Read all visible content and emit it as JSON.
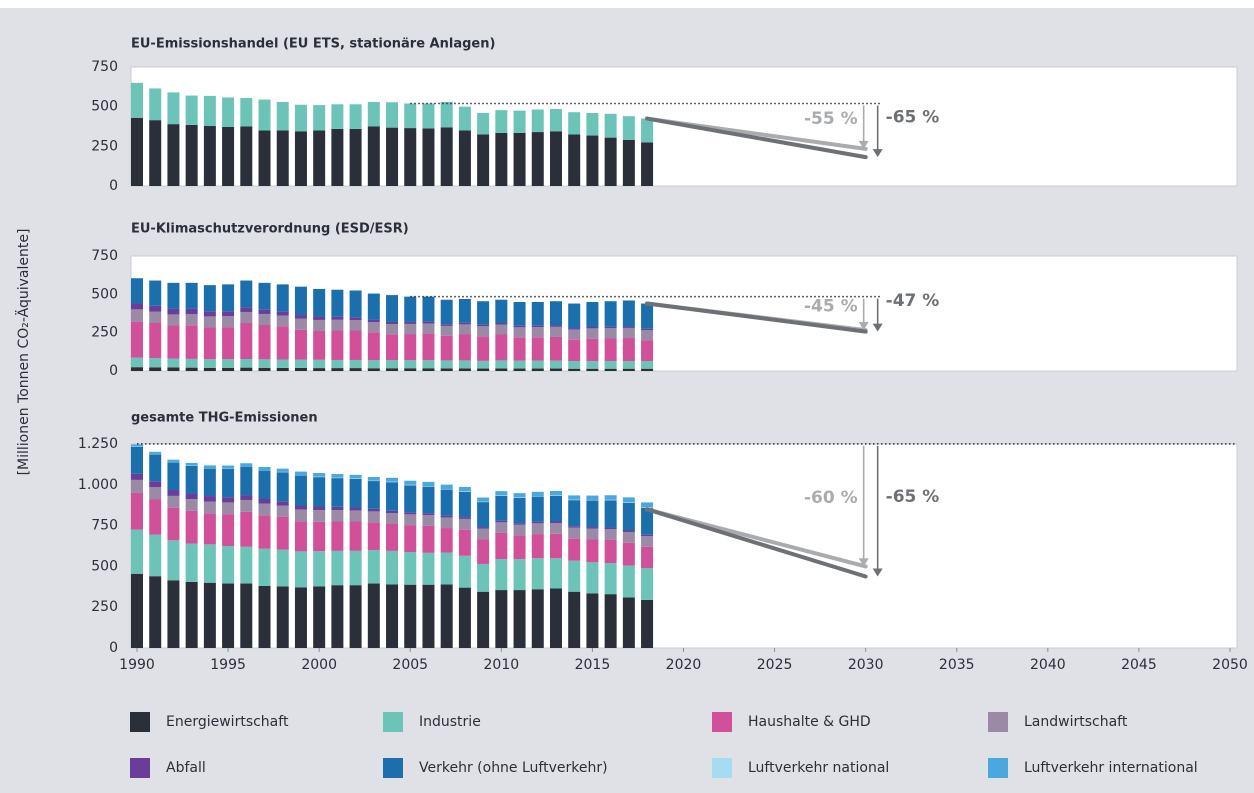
{
  "chart_data": [
    {
      "type": "bar",
      "title": "EU-Emissionshandel (EU ETS, stationäre Anlagen)",
      "x": [
        1990,
        1991,
        1992,
        1993,
        1994,
        1995,
        1996,
        1997,
        1998,
        1999,
        2000,
        2001,
        2002,
        2003,
        2004,
        2005,
        2006,
        2007,
        2008,
        2009,
        2010,
        2011,
        2012,
        2013,
        2014,
        2015,
        2016,
        2017,
        2018
      ],
      "series": [
        {
          "name": "Energiewirtschaft",
          "color": "#2b2f3a",
          "values": [
            430,
            415,
            390,
            385,
            378,
            372,
            375,
            350,
            350,
            345,
            350,
            360,
            360,
            375,
            368,
            365,
            363,
            370,
            350,
            325,
            335,
            335,
            340,
            345,
            325,
            318,
            305,
            290,
            275
          ]
        },
        {
          "name": "Industrie",
          "color": "#6cc4b8",
          "values": [
            220,
            200,
            200,
            185,
            190,
            186,
            180,
            195,
            180,
            167,
            160,
            155,
            155,
            155,
            160,
            155,
            157,
            160,
            150,
            135,
            143,
            140,
            142,
            140,
            140,
            142,
            150,
            150,
            150
          ]
        }
      ],
      "ylim": [
        0,
        750
      ],
      "yticks": [
        0,
        250,
        500,
        750
      ],
      "grid": false,
      "reference": {
        "value": 520,
        "x": [
          2005,
          2030
        ]
      },
      "targets": [
        {
          "label": "-55 %",
          "color": "#a9abae",
          "x": [
            2018,
            2030
          ],
          "values": [
            425,
            234
          ]
        },
        {
          "label": "-65 %",
          "color": "#6d7075",
          "x": [
            2018,
            2030
          ],
          "values": [
            425,
            182
          ]
        }
      ]
    },
    {
      "type": "bar",
      "title": "EU-Klimaschutzverordnung (ESD/ESR)",
      "x": [
        1990,
        1991,
        1992,
        1993,
        1994,
        1995,
        1996,
        1997,
        1998,
        1999,
        2000,
        2001,
        2002,
        2003,
        2004,
        2005,
        2006,
        2007,
        2008,
        2009,
        2010,
        2011,
        2012,
        2013,
        2014,
        2015,
        2016,
        2017,
        2018
      ],
      "series": [
        {
          "name": "Energiewirtschaft",
          "color": "#2b2f3a",
          "values": [
            25,
            24,
            23,
            22,
            21,
            21,
            22,
            21,
            20,
            20,
            19,
            19,
            19,
            18,
            18,
            18,
            18,
            17,
            17,
            16,
            17,
            16,
            16,
            16,
            15,
            15,
            15,
            15,
            15
          ]
        },
        {
          "name": "Industrie",
          "color": "#6cc4b8",
          "values": [
            62,
            60,
            58,
            57,
            56,
            56,
            56,
            55,
            55,
            54,
            54,
            53,
            53,
            52,
            52,
            52,
            52,
            52,
            52,
            50,
            52,
            51,
            51,
            51,
            50,
            50,
            50,
            50,
            50
          ]
        },
        {
          "name": "Haushalte & GHD",
          "color": "#d1509a",
          "values": [
            235,
            229,
            216,
            219,
            207,
            209,
            235,
            224,
            216,
            195,
            188,
            192,
            192,
            182,
            169,
            171,
            174,
            160,
            169,
            160,
            169,
            153,
            153,
            155,
            139,
            146,
            147,
            150,
            136
          ]
        },
        {
          "name": "Landwirtschaft",
          "color": "#9b8aa6",
          "values": [
            80,
            75,
            72,
            72,
            72,
            72,
            72,
            72,
            70,
            72,
            72,
            70,
            68,
            67,
            67,
            66,
            66,
            65,
            66,
            66,
            65,
            65,
            66,
            66,
            67,
            67,
            67,
            66,
            65
          ]
        },
        {
          "name": "Abfall",
          "color": "#6a3d9a",
          "values": [
            38,
            37,
            36,
            35,
            34,
            32,
            30,
            28,
            26,
            24,
            22,
            20,
            18,
            16,
            14,
            13,
            12,
            11,
            11,
            10,
            10,
            10,
            9,
            9,
            9,
            9,
            9,
            9,
            9
          ]
        },
        {
          "name": "Verkehr (ohne Luftverkehr)",
          "color": "#1a6fac",
          "values": [
            165,
            165,
            170,
            170,
            170,
            175,
            175,
            175,
            178,
            185,
            180,
            176,
            175,
            170,
            175,
            165,
            163,
            160,
            155,
            153,
            152,
            155,
            155,
            158,
            160,
            163,
            167,
            170,
            165
          ]
        }
      ],
      "ylim": [
        0,
        750
      ],
      "yticks": [
        0,
        250,
        500,
        750
      ],
      "grid": false,
      "reference": {
        "value": 485,
        "x": [
          2005,
          2030
        ]
      },
      "targets": [
        {
          "label": "-45 %",
          "color": "#a9abae",
          "x": [
            2018,
            2030
          ],
          "values": [
            440,
            267
          ]
        },
        {
          "label": "-47 %",
          "color": "#6d7075",
          "x": [
            2018,
            2030
          ],
          "values": [
            440,
            257
          ]
        }
      ]
    },
    {
      "type": "bar",
      "title": "gesamte THG-Emissionen",
      "x": [
        1990,
        1991,
        1992,
        1993,
        1994,
        1995,
        1996,
        1997,
        1998,
        1999,
        2000,
        2001,
        2002,
        2003,
        2004,
        2005,
        2006,
        2007,
        2008,
        2009,
        2010,
        2011,
        2012,
        2013,
        2014,
        2015,
        2016,
        2017,
        2018
      ],
      "series": [
        {
          "name": "Energiewirtschaft",
          "color": "#2b2f3a",
          "values": [
            455,
            440,
            415,
            405,
            400,
            395,
            395,
            380,
            378,
            372,
            378,
            385,
            385,
            395,
            390,
            388,
            388,
            390,
            370,
            345,
            355,
            355,
            360,
            365,
            345,
            335,
            330,
            310,
            295
          ]
        },
        {
          "name": "Industrie",
          "color": "#6cc4b8",
          "values": [
            270,
            255,
            245,
            235,
            235,
            230,
            225,
            228,
            225,
            220,
            215,
            210,
            210,
            205,
            205,
            200,
            195,
            195,
            195,
            170,
            190,
            190,
            190,
            185,
            190,
            190,
            190,
            195,
            195
          ]
        },
        {
          "name": "Haushalte & GHD",
          "color": "#d1509a",
          "values": [
            225,
            215,
            200,
            200,
            190,
            195,
            215,
            205,
            200,
            185,
            180,
            180,
            180,
            170,
            165,
            165,
            165,
            150,
            160,
            150,
            160,
            145,
            148,
            150,
            135,
            140,
            142,
            140,
            130
          ]
        },
        {
          "name": "Landwirtschaft",
          "color": "#9b8aa6",
          "values": [
            80,
            75,
            72,
            72,
            72,
            72,
            72,
            72,
            70,
            72,
            72,
            70,
            68,
            67,
            67,
            66,
            66,
            65,
            66,
            66,
            65,
            65,
            66,
            66,
            67,
            67,
            67,
            66,
            65
          ]
        },
        {
          "name": "Abfall",
          "color": "#6a3d9a",
          "values": [
            38,
            37,
            36,
            35,
            34,
            32,
            30,
            28,
            26,
            24,
            22,
            20,
            18,
            16,
            14,
            13,
            12,
            11,
            11,
            10,
            10,
            10,
            9,
            9,
            9,
            9,
            9,
            9,
            9
          ]
        },
        {
          "name": "Verkehr (ohne Luftverkehr)",
          "color": "#1a6fac",
          "values": [
            165,
            165,
            170,
            170,
            170,
            175,
            175,
            175,
            178,
            185,
            180,
            176,
            175,
            170,
            175,
            165,
            163,
            160,
            155,
            153,
            152,
            155,
            155,
            158,
            160,
            163,
            167,
            170,
            165
          ]
        },
        {
          "name": "Luftverkehr national",
          "color": "#a6dcf2",
          "values": [
            2,
            2,
            2,
            2,
            2,
            2,
            2,
            2,
            2,
            2,
            3,
            3,
            3,
            3,
            3,
            3,
            3,
            3,
            3,
            3,
            3,
            3,
            3,
            3,
            3,
            3,
            3,
            3,
            3
          ]
        },
        {
          "name": "Luftverkehr international",
          "color": "#4aa8dc",
          "values": [
            12,
            13,
            14,
            15,
            16,
            17,
            18,
            19,
            20,
            21,
            22,
            22,
            22,
            22,
            24,
            25,
            26,
            27,
            27,
            25,
            26,
            26,
            26,
            26,
            26,
            27,
            28,
            30,
            30
          ]
        }
      ],
      "xlim": [
        1990,
        2050
      ],
      "xticks": [
        1990,
        1995,
        2000,
        2005,
        2010,
        2015,
        2020,
        2025,
        2030,
        2035,
        2040,
        2045,
        2050
      ],
      "ylim": [
        0,
        1250
      ],
      "yticks": [
        0,
        250,
        500,
        750,
        {
          "value": 1000,
          "label": "1.000"
        },
        {
          "value": 1250,
          "label": "1.250"
        }
      ],
      "grid": false,
      "y_axis_label": "[Millionen Tonnen CO₂-Äquivalente]",
      "reference": {
        "value": 1251,
        "x": [
          1990,
          2050
        ]
      },
      "targets": [
        {
          "label": "-60 %",
          "color": "#a9abae",
          "x": [
            2018,
            2030
          ],
          "values": [
            850,
            500
          ]
        },
        {
          "label": "-65 %",
          "color": "#6d7075",
          "x": [
            2018,
            2030
          ],
          "values": [
            850,
            438
          ]
        }
      ]
    }
  ]
}
